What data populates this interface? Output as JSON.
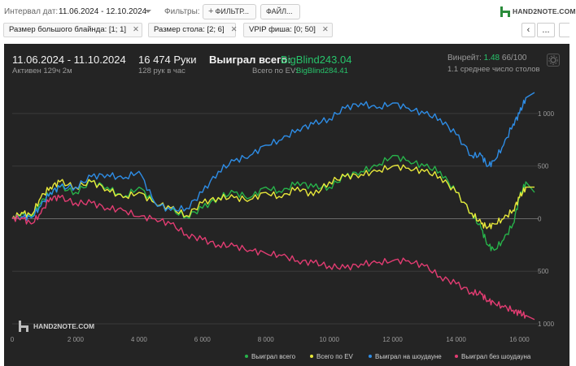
{
  "toolbar": {
    "date_label": "Интервал дат:",
    "date_value": "11.06.2024 - 12.10.2024",
    "filters_label": "Фильтры:",
    "filter_button": "ФИЛЬТР...",
    "file_button": "ФАЙЛ...",
    "plus_icon": "plus-icon",
    "logo_text": "HAND2NOTE.COM",
    "logo_color": "#2a8b3b"
  },
  "chips": [
    {
      "label": "Размер большого блайнда: [1; 1]",
      "close": "✕"
    },
    {
      "label": "Размер стола: [2; 6]",
      "close": "✕"
    },
    {
      "label": "VPIP фиша: [0; 50]",
      "close": "✕"
    }
  ],
  "nav": {
    "prev": "‹",
    "more": "..."
  },
  "stats": {
    "period": "11.06.2024 - 11.10.2024",
    "active": "Активен 129ч 2м",
    "hands": "16 474 Руки",
    "hands_per_hour": "128 рук в час",
    "won_label": "Выиграл всего:",
    "won_value": "BigBlind243.04",
    "ev_label": "Всего по EV:",
    "ev_value": "BigBlind284.41",
    "winrate_label": "Винрейт:",
    "winrate_value": "1.48",
    "winrate_denominator": "66/100",
    "avg_tables": "1.1 среднее число столов",
    "accent_green": "#27c46b"
  },
  "chart_data": {
    "type": "line",
    "xlim": [
      0,
      16474
    ],
    "ylim": [
      -1000,
      1200
    ],
    "x_ticks": [
      0,
      2000,
      4000,
      6000,
      8000,
      10000,
      12000,
      14000,
      16000
    ],
    "x_tick_labels": [
      "0",
      "2 000",
      "4 000",
      "6 000",
      "8 000",
      "10 000",
      "12 000",
      "14 000",
      "16 000"
    ],
    "y_ticks": [
      1000,
      500,
      0,
      -500,
      -1000
    ],
    "y_tick_labels": [
      "1 000",
      "500",
      "0",
      "500",
      "1 000"
    ],
    "grid": true,
    "legend_position": "bottom-right",
    "watermark": "HAND2NOTE.COM",
    "series": [
      {
        "name": "Выиграл всего",
        "color": "#27b24a",
        "x": [
          0,
          300,
          600,
          900,
          1200,
          1500,
          2000,
          2500,
          3000,
          3500,
          4000,
          4500,
          5000,
          5500,
          6000,
          6500,
          7000,
          7500,
          8000,
          8500,
          9000,
          9500,
          10000,
          10500,
          11000,
          11500,
          12000,
          12500,
          13000,
          13500,
          14000,
          14500,
          14800,
          15000,
          15200,
          15500,
          15800,
          16000,
          16200,
          16474
        ],
        "y": [
          0,
          50,
          20,
          150,
          250,
          300,
          250,
          350,
          300,
          200,
          300,
          150,
          80,
          20,
          100,
          200,
          250,
          200,
          300,
          250,
          350,
          300,
          300,
          400,
          450,
          500,
          600,
          550,
          500,
          450,
          250,
          50,
          -100,
          -250,
          -300,
          -200,
          -50,
          200,
          350,
          250
        ]
      },
      {
        "name": "Всего по EV",
        "color": "#e8e83a",
        "x": [
          0,
          300,
          600,
          900,
          1200,
          1500,
          2000,
          2500,
          3000,
          3500,
          4000,
          4500,
          5000,
          5500,
          6000,
          6500,
          7000,
          7500,
          8000,
          8500,
          9000,
          9500,
          10000,
          10500,
          11000,
          11500,
          12000,
          12500,
          13000,
          13500,
          14000,
          14500,
          14800,
          15000,
          15200,
          15500,
          15800,
          16000,
          16200,
          16474
        ],
        "y": [
          0,
          60,
          30,
          200,
          300,
          350,
          300,
          350,
          280,
          200,
          250,
          150,
          100,
          30,
          150,
          200,
          200,
          180,
          250,
          200,
          300,
          220,
          350,
          400,
          420,
          450,
          500,
          480,
          450,
          400,
          250,
          50,
          -50,
          -80,
          -50,
          0,
          80,
          200,
          300,
          300
        ]
      },
      {
        "name": "Выиграл на шоудауне",
        "color": "#2e8de6",
        "x": [
          0,
          300,
          600,
          900,
          1200,
          1500,
          2000,
          2500,
          3000,
          3500,
          4000,
          4500,
          5000,
          5500,
          6000,
          6500,
          7000,
          7500,
          8000,
          8500,
          9000,
          9500,
          10000,
          10500,
          11000,
          11500,
          12000,
          12500,
          13000,
          13500,
          14000,
          14500,
          14800,
          15000,
          15200,
          15500,
          15800,
          16000,
          16200,
          16474
        ],
        "y": [
          0,
          20,
          10,
          120,
          250,
          300,
          300,
          400,
          420,
          380,
          450,
          150,
          80,
          100,
          250,
          450,
          550,
          600,
          700,
          750,
          850,
          900,
          950,
          1050,
          1100,
          1050,
          1100,
          1050,
          1000,
          950,
          800,
          600,
          600,
          500,
          550,
          700,
          900,
          1000,
          1150,
          1200
        ]
      },
      {
        "name": "Выиграл без шоудауна",
        "color": "#e23c72",
        "x": [
          0,
          300,
          600,
          900,
          1200,
          1500,
          2000,
          2500,
          3000,
          3500,
          4000,
          4500,
          5000,
          5500,
          6000,
          6500,
          7000,
          7500,
          8000,
          8500,
          9000,
          9500,
          10000,
          10500,
          11000,
          11500,
          12000,
          12500,
          13000,
          13500,
          14000,
          14500,
          14800,
          15000,
          15200,
          15500,
          15800,
          16000,
          16200,
          16474
        ],
        "y": [
          0,
          10,
          -50,
          50,
          200,
          200,
          150,
          150,
          100,
          80,
          20,
          0,
          -50,
          -150,
          -200,
          -250,
          -260,
          -300,
          -330,
          -350,
          -400,
          -420,
          -450,
          -470,
          -430,
          -420,
          -400,
          -400,
          -450,
          -550,
          -620,
          -700,
          -720,
          -780,
          -800,
          -840,
          -870,
          -900,
          -920,
          -960
        ]
      }
    ]
  }
}
